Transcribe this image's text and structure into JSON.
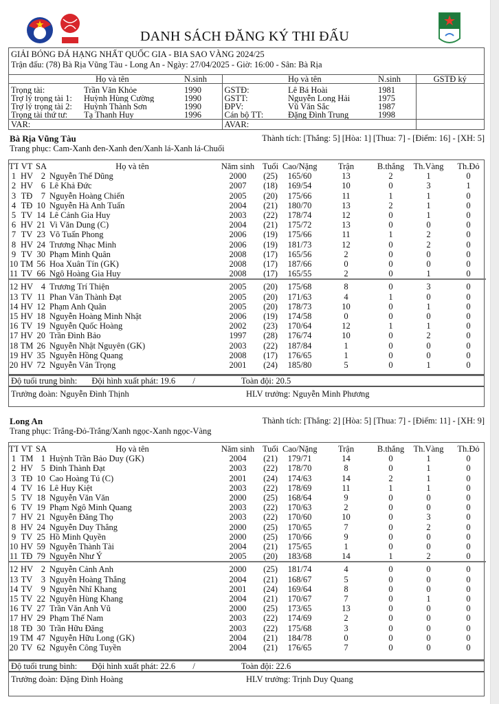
{
  "header": {
    "title": "DANH SÁCH ĐĂNG KÝ THI ĐẤU",
    "logos": {
      "left": "VFF",
      "middle": "VPF",
      "right": "Hạng Nhất Quốc Gia"
    }
  },
  "match": {
    "league": "GIẢI BÓNG ĐÁ HẠNG NHẤT QUỐC GIA - BIA SAO VÀNG 2024/25",
    "info": "Trận đấu: (78) Bà Rịa Vũng Tàu - Long An - Ngày: 27/04/2025 - Giờ: 16:00 - Sân: Bà Rịa"
  },
  "officials": {
    "headers": {
      "name": "Họ và tên",
      "year": "N.sinh",
      "name2": "Họ và tên",
      "year2": "N.sinh",
      "sign": "GSTĐ ký"
    },
    "left": [
      {
        "role": "Trọng tài:",
        "name": "Trần Văn Khỏe",
        "year": "1990"
      },
      {
        "role": "Trợ lý trọng tài 1:",
        "name": "Huỳnh Hùng Cường",
        "year": "1990"
      },
      {
        "role": "Trợ lý trọng tài 2:",
        "name": "Huỳnh Thành Sơn",
        "year": "1990"
      },
      {
        "role": "Trọng tài thứ tư:",
        "name": "Tạ Thanh Huy",
        "year": "1996"
      }
    ],
    "right": [
      {
        "role": "GSTĐ:",
        "name": "Lê Bá Hoài",
        "year": "1981"
      },
      {
        "role": "GSTT:",
        "name": "Nguyễn Long Hải",
        "year": "1975"
      },
      {
        "role": "ĐPV:",
        "name": "Vũ Văn Sắc",
        "year": "1987"
      },
      {
        "role": "Cán bộ TT:",
        "name": "Đặng Đình Trung",
        "year": "1998"
      }
    ],
    "var": "VAR:",
    "avar": "AVAR:"
  },
  "columns": [
    "TT",
    "VT",
    "SA",
    "Họ và tên",
    "Năm sinh",
    "Tuổi",
    "Cao/Nặng",
    "Trận",
    "B.thắng",
    "Th.Vàng",
    "Th.Đỏ"
  ],
  "teams": [
    {
      "name": "Bà Rịa Vũng Tàu",
      "record": "Thành tích: [Thắng: 5] [Hòa: 1] [Thua: 7] - [Điểm: 16] - [XH: 5]",
      "kit": "Trang phục: Cam-Xanh đen-Xanh đen/Xanh lá-Xanh lá-Chuối",
      "players": [
        [
          "1",
          "HV",
          "2",
          "Nguyễn Thế Dũng",
          "2000",
          "(25)",
          "165/60",
          "13",
          "2",
          "1",
          "0"
        ],
        [
          "2",
          "HV",
          "6",
          "Lê Khả Đức",
          "2007",
          "(18)",
          "169/54",
          "10",
          "0",
          "3",
          "1"
        ],
        [
          "3",
          "TĐ",
          "7",
          "Nguyễn Hoàng Chiến",
          "2005",
          "(20)",
          "175/66",
          "11",
          "1",
          "1",
          "0"
        ],
        [
          "4",
          "TĐ",
          "10",
          "Nguyễn Hà Anh Tuấn",
          "2004",
          "(21)",
          "180/70",
          "13",
          "2",
          "1",
          "0"
        ],
        [
          "5",
          "TV",
          "14",
          "Lê Cảnh Gia Huy",
          "2003",
          "(22)",
          "178/74",
          "12",
          "0",
          "1",
          "0"
        ],
        [
          "6",
          "HV",
          "21",
          "Vi Văn Dung (C)",
          "2004",
          "(21)",
          "175/72",
          "13",
          "0",
          "0",
          "0"
        ],
        [
          "7",
          "TV",
          "23",
          "Võ Tuấn Phong",
          "2006",
          "(19)",
          "175/66",
          "11",
          "1",
          "2",
          "0"
        ],
        [
          "8",
          "HV",
          "24",
          "Trương Nhạc Minh",
          "2006",
          "(19)",
          "181/73",
          "12",
          "0",
          "2",
          "0"
        ],
        [
          "9",
          "TV",
          "30",
          "Phạm Minh Quân",
          "2008",
          "(17)",
          "165/56",
          "2",
          "0",
          "0",
          "0"
        ],
        [
          "10",
          "TM",
          "56",
          "Hoa Xuân Tín (GK)",
          "2008",
          "(17)",
          "187/66",
          "0",
          "0",
          "0",
          "0"
        ],
        [
          "11",
          "TV",
          "66",
          "Ngô Hoàng Gia Huy",
          "2008",
          "(17)",
          "165/55",
          "2",
          "0",
          "1",
          "0"
        ],
        [
          "12",
          "HV",
          "4",
          "Trương Trí Thiện",
          "2005",
          "(20)",
          "175/68",
          "8",
          "0",
          "3",
          "0"
        ],
        [
          "13",
          "TV",
          "11",
          "Phan Văn Thành Đạt",
          "2005",
          "(20)",
          "171/63",
          "4",
          "1",
          "0",
          "0"
        ],
        [
          "14",
          "HV",
          "12",
          "Phạm Anh Quân",
          "2005",
          "(20)",
          "178/73",
          "10",
          "0",
          "1",
          "0"
        ],
        [
          "15",
          "HV",
          "18",
          "Nguyễn Hoàng Minh Nhật",
          "2006",
          "(19)",
          "174/58",
          "0",
          "0",
          "0",
          "0"
        ],
        [
          "16",
          "TV",
          "19",
          "Nguyễn Quốc Hoàng",
          "2002",
          "(23)",
          "170/64",
          "12",
          "1",
          "1",
          "0"
        ],
        [
          "17",
          "HV",
          "20",
          "Trần Đình Bảo",
          "1997",
          "(28)",
          "176/74",
          "10",
          "0",
          "2",
          "0"
        ],
        [
          "18",
          "TM",
          "26",
          "Nguyễn Nhật Nguyên (GK)",
          "2003",
          "(22)",
          "187/84",
          "1",
          "0",
          "0",
          "0"
        ],
        [
          "19",
          "HV",
          "35",
          "Nguyễn Hồng Quang",
          "2008",
          "(17)",
          "176/65",
          "1",
          "0",
          "0",
          "0"
        ],
        [
          "20",
          "HV",
          "72",
          "Nguyễn Văn Trọng",
          "2001",
          "(24)",
          "185/80",
          "5",
          "0",
          "1",
          "0"
        ]
      ],
      "avg_label": "Độ tuổi trung bình:",
      "avg_start": "Đội hình xuất phát: 19.6",
      "avg_slash": "/",
      "avg_all": "Toàn đội: 20.5",
      "manager": "Trưởng đoàn: Nguyễn Đình Thịnh",
      "coach": "HLV trưởng: Nguyễn Minh Phương"
    },
    {
      "name": "Long An",
      "record": "Thành tích: [Thắng: 2] [Hòa: 5] [Thua: 7] - [Điểm: 11] - [XH: 9]",
      "kit": "Trang phục: Trắng-Đỏ-Trắng/Xanh ngọc-Xanh ngọc-Vàng",
      "players": [
        [
          "1",
          "TM",
          "1",
          "Huỳnh Trần Bảo Duy (GK)",
          "2004",
          "(21)",
          "179/71",
          "14",
          "0",
          "1",
          "0"
        ],
        [
          "2",
          "HV",
          "5",
          "Đinh Thành Đạt",
          "2003",
          "(22)",
          "178/70",
          "8",
          "0",
          "1",
          "0"
        ],
        [
          "3",
          "TĐ",
          "10",
          "Cao Hoàng Tú (C)",
          "2001",
          "(24)",
          "174/63",
          "14",
          "2",
          "1",
          "0"
        ],
        [
          "4",
          "TV",
          "16",
          "Lê Huy Kiệt",
          "2003",
          "(22)",
          "178/69",
          "11",
          "1",
          "1",
          "0"
        ],
        [
          "5",
          "TV",
          "18",
          "Nguyễn Văn Văn",
          "2000",
          "(25)",
          "168/64",
          "9",
          "0",
          "0",
          "0"
        ],
        [
          "6",
          "TV",
          "19",
          "Phạm Ngô Minh Quang",
          "2003",
          "(22)",
          "170/63",
          "2",
          "0",
          "0",
          "0"
        ],
        [
          "7",
          "HV",
          "21",
          "Nguyễn Đăng Thọ",
          "2003",
          "(22)",
          "170/60",
          "10",
          "0",
          "3",
          "0"
        ],
        [
          "8",
          "HV",
          "24",
          "Nguyễn Duy Thắng",
          "2000",
          "(25)",
          "170/65",
          "7",
          "0",
          "2",
          "0"
        ],
        [
          "9",
          "TV",
          "25",
          "Hồ Minh Quyền",
          "2000",
          "(25)",
          "170/66",
          "9",
          "0",
          "0",
          "0"
        ],
        [
          "10",
          "HV",
          "59",
          "Nguyễn Thành Tài",
          "2004",
          "(21)",
          "175/65",
          "1",
          "0",
          "0",
          "0"
        ],
        [
          "11",
          "TĐ",
          "79",
          "Nguyễn Như Ý",
          "2005",
          "(20)",
          "183/68",
          "14",
          "1",
          "2",
          "0"
        ],
        [
          "12",
          "HV",
          "2",
          "Nguyễn Cảnh Anh",
          "2000",
          "(25)",
          "181/74",
          "4",
          "0",
          "0",
          "0"
        ],
        [
          "13",
          "TV",
          "3",
          "Nguyễn Hoàng Thắng",
          "2004",
          "(21)",
          "168/67",
          "5",
          "0",
          "0",
          "0"
        ],
        [
          "14",
          "TV",
          "9",
          "Nguyễn Nhĩ Khang",
          "2001",
          "(24)",
          "169/64",
          "8",
          "0",
          "0",
          "0"
        ],
        [
          "15",
          "TV",
          "22",
          "Nguyễn Hùng Khang",
          "2004",
          "(21)",
          "170/67",
          "7",
          "0",
          "1",
          "0"
        ],
        [
          "16",
          "TV",
          "27",
          "Trần Văn Anh Vũ",
          "2000",
          "(25)",
          "173/65",
          "13",
          "0",
          "0",
          "0"
        ],
        [
          "17",
          "HV",
          "29",
          "Phạm Thế Nam",
          "2003",
          "(22)",
          "174/69",
          "2",
          "0",
          "0",
          "0"
        ],
        [
          "18",
          "TĐ",
          "30",
          "Trần Hữu Đăng",
          "2003",
          "(22)",
          "175/68",
          "3",
          "0",
          "0",
          "0"
        ],
        [
          "19",
          "TM",
          "47",
          "Nguyễn Hữu Long (GK)",
          "2004",
          "(21)",
          "184/78",
          "0",
          "0",
          "0",
          "0"
        ],
        [
          "20",
          "TV",
          "62",
          "Nguyễn Công Tuyền",
          "2004",
          "(21)",
          "176/65",
          "7",
          "0",
          "0",
          "0"
        ]
      ],
      "avg_label": "Độ tuổi trung bình:",
      "avg_start": "Đội hình xuất phát: 22.6",
      "avg_slash": "/",
      "avg_all": "Toàn đội: 22.6",
      "manager": "Trưởng đoàn: Đặng Đình Hoàng",
      "coach": "HLV trưởng: Trịnh Duy Quang"
    }
  ]
}
